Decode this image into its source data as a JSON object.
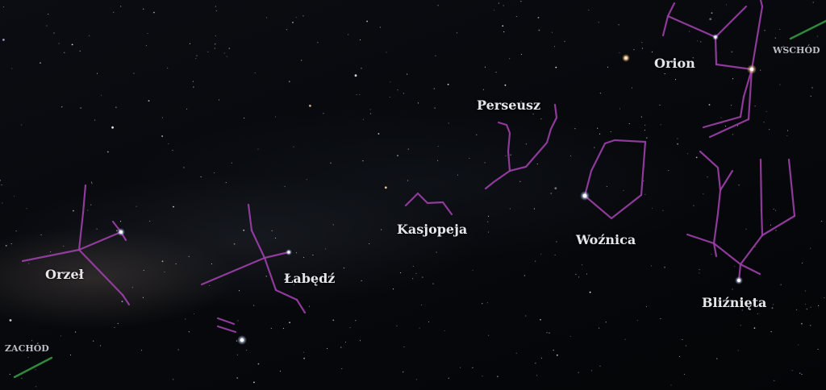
{
  "constellations": [
    {
      "key": "aquila",
      "label": "Orzeł"
    },
    {
      "key": "cygnus",
      "label": "Łabędź"
    },
    {
      "key": "cassiopeia",
      "label": "Kasjopeja"
    },
    {
      "key": "perseus",
      "label": "Perseusz"
    },
    {
      "key": "auriga",
      "label": "Woźnica"
    },
    {
      "key": "orion",
      "label": "Orion"
    },
    {
      "key": "gemini",
      "label": "Bliźnięta"
    }
  ],
  "directions": {
    "west": "ZACHÓD",
    "east": "WSCHÓD"
  },
  "colors": {
    "line": "#9a3fa6",
    "horizon": "#2e8b3c",
    "label": "#e6e6ea",
    "sky": "#05070a"
  }
}
